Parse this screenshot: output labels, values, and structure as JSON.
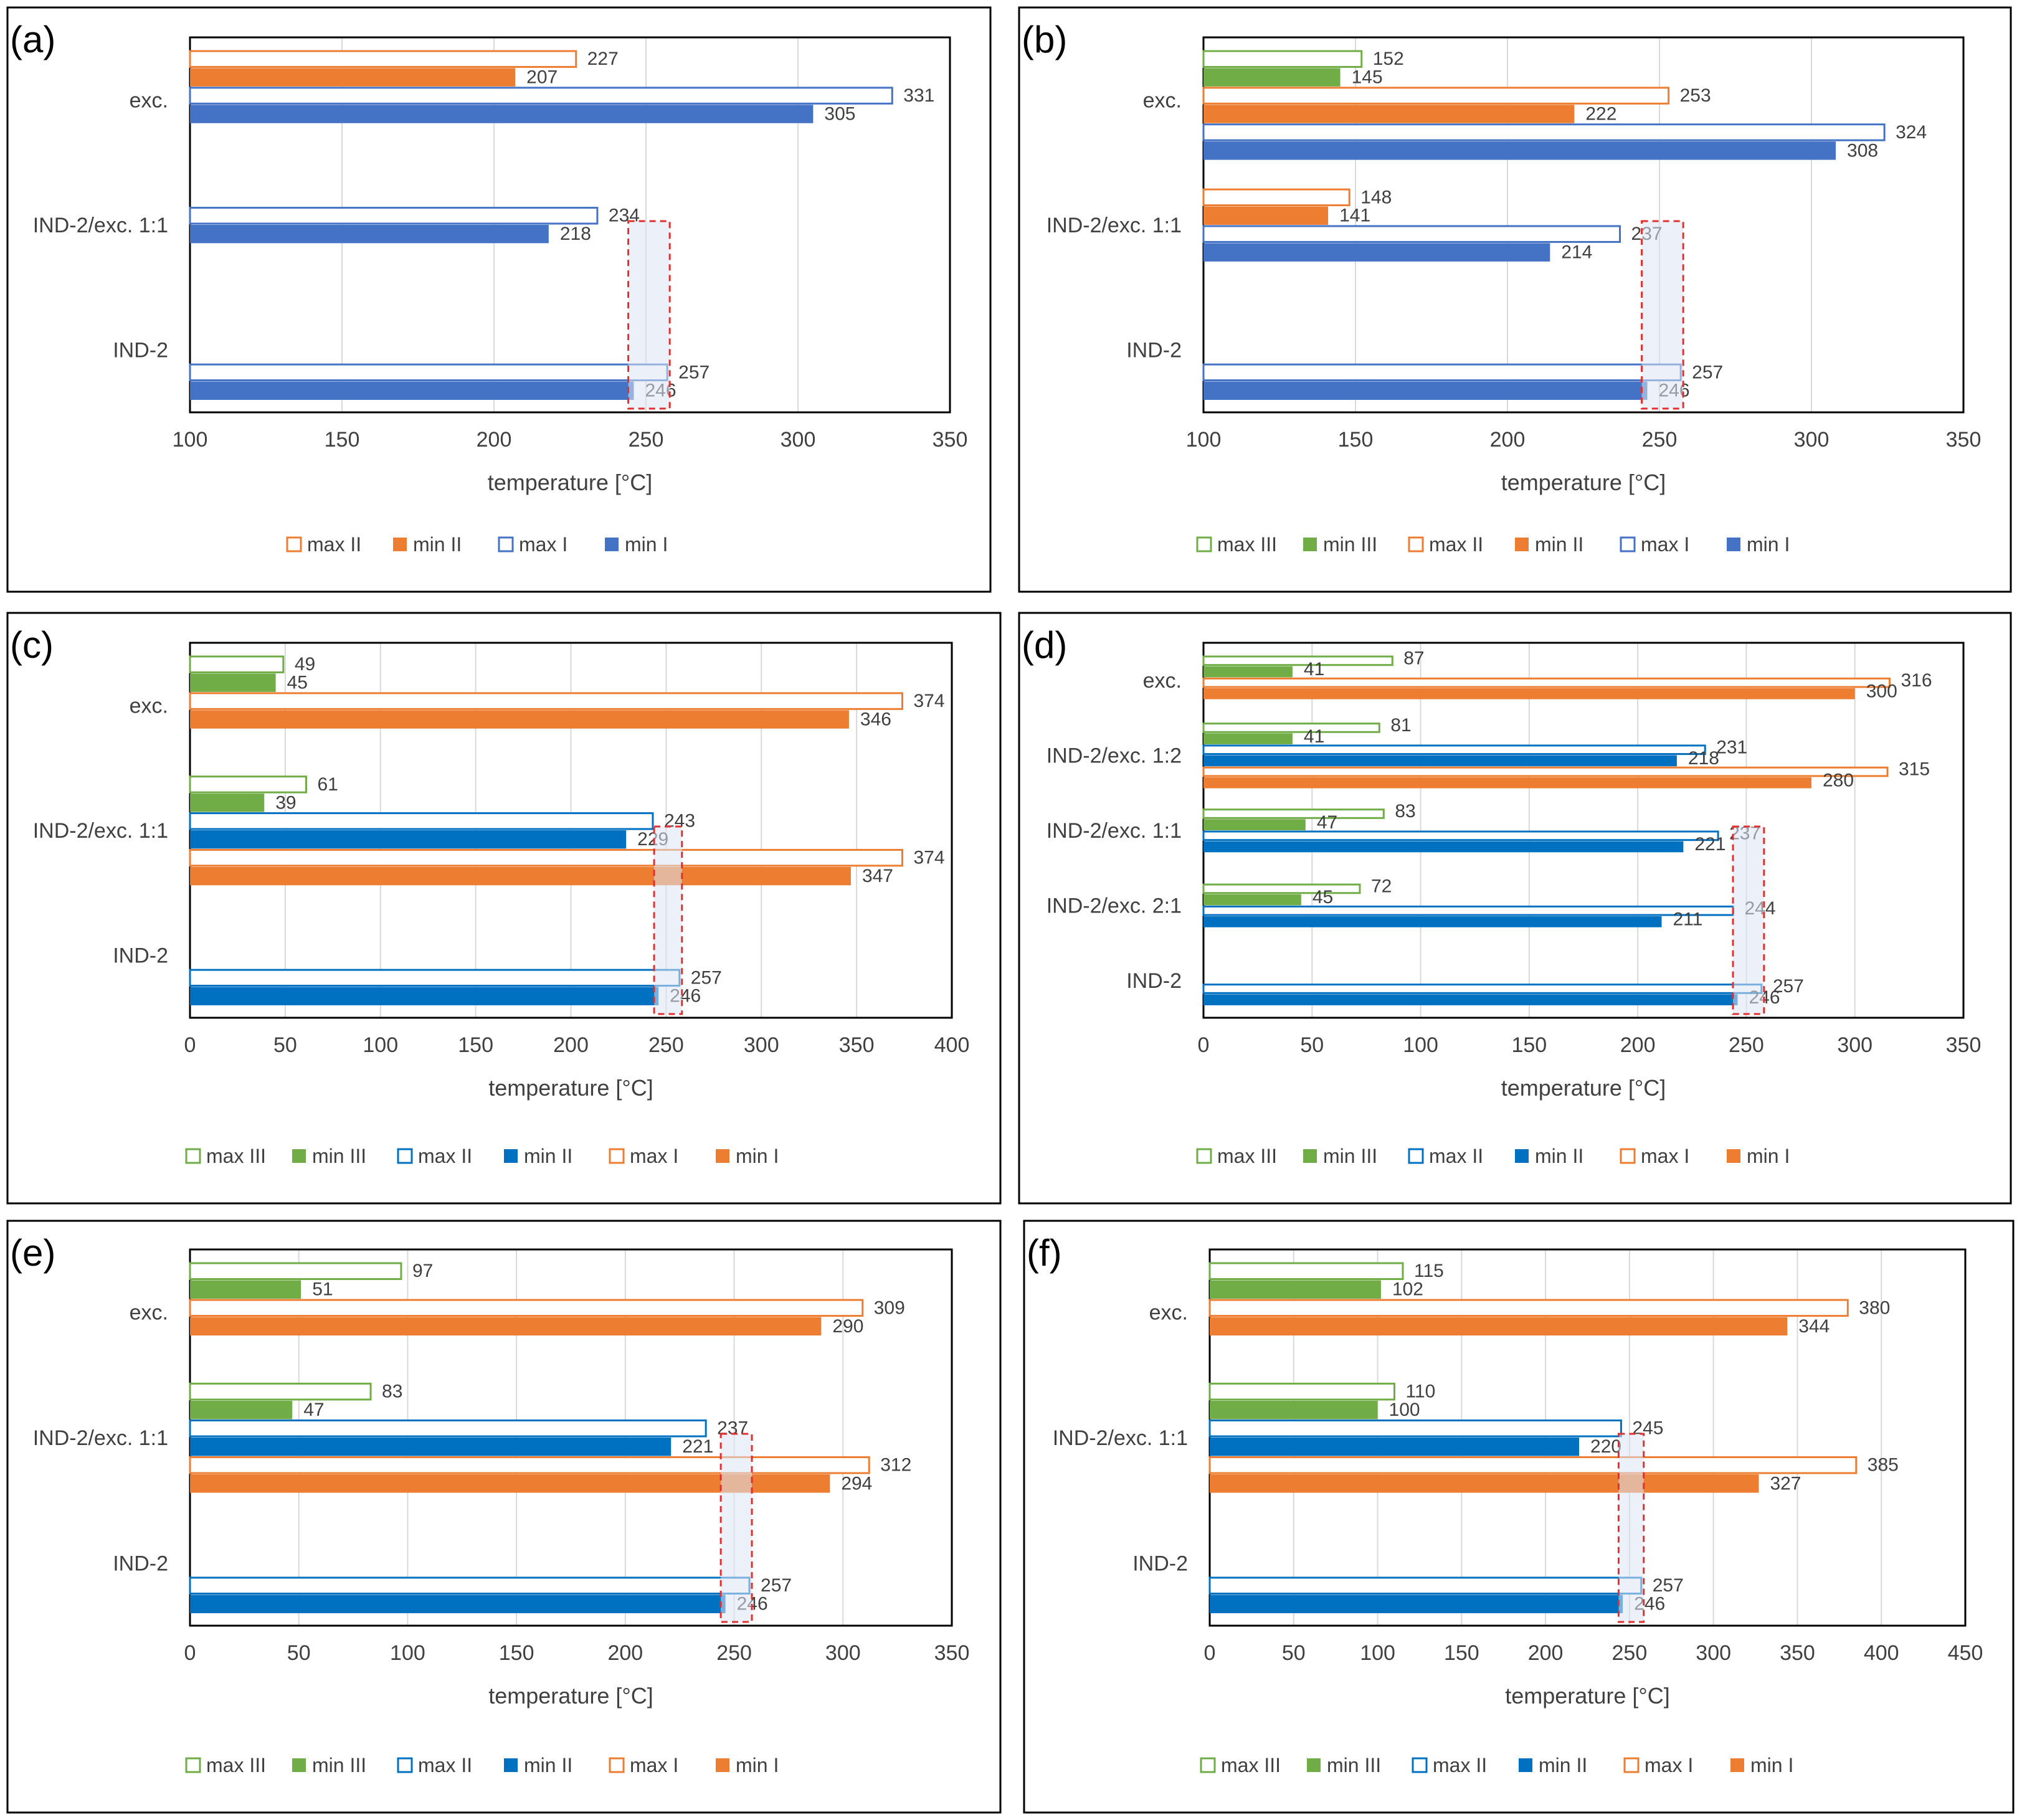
{
  "colors": {
    "frame": "#000000",
    "grid": "#d9d9d9",
    "blue": "#4472c4",
    "blue2": "#0070c0",
    "orange": "#ed7d31",
    "green": "#70ad47",
    "highlight_border": "#e03030",
    "highlight_fill": "#dde6f4",
    "text": "#404040"
  },
  "chart_data": [
    {
      "type": "bar",
      "panel_label": "(a)",
      "xlabel": "temperature [°C]",
      "xlim": [
        100,
        350
      ],
      "ticks": [
        100,
        150,
        200,
        250,
        300,
        350
      ],
      "grid": true,
      "legend_position": "bottom",
      "highlight": [
        245,
        257
      ],
      "categories": [
        {
          "name": "exc.",
          "bars": [
            {
              "series": "max II",
              "value": 227,
              "label": "227"
            },
            {
              "series": "min II",
              "value": 207,
              "label": "207"
            },
            {
              "series": "max I",
              "value": 331,
              "label": "331"
            },
            {
              "series": "min I",
              "value": 305,
              "label": "305"
            }
          ]
        },
        {
          "name": "IND-2/exc. 1:1",
          "bars": [
            {
              "series": "max I",
              "value": 234,
              "label": "234"
            },
            {
              "series": "min I",
              "value": 218,
              "label": "218"
            }
          ]
        },
        {
          "name": "IND-2",
          "bars": [
            {
              "series": "max I",
              "value": 257,
              "label": "257"
            },
            {
              "series": "min I",
              "value": 246,
              "label": "246"
            }
          ]
        }
      ],
      "legend": [
        {
          "label": "max II",
          "color": "#ed7d31",
          "style": "outline"
        },
        {
          "label": "min II",
          "color": "#ed7d31",
          "style": "solid"
        },
        {
          "label": "max I",
          "color": "#4472c4",
          "style": "outline"
        },
        {
          "label": "min I",
          "color": "#4472c4",
          "style": "solid"
        }
      ]
    },
    {
      "type": "bar",
      "panel_label": "(b)",
      "xlabel": "temperature [°C]",
      "xlim": [
        100,
        350
      ],
      "ticks": [
        100,
        150,
        200,
        250,
        300,
        350
      ],
      "grid": true,
      "legend_position": "bottom",
      "highlight": [
        245,
        257
      ],
      "categories": [
        {
          "name": "exc.",
          "bars": [
            {
              "series": "max III",
              "value": 152,
              "label": "152"
            },
            {
              "series": "min III",
              "value": 145,
              "label": "145"
            },
            {
              "series": "max II",
              "value": 253,
              "label": "253"
            },
            {
              "series": "min II",
              "value": 222,
              "label": "222"
            },
            {
              "series": "max I",
              "value": 324,
              "label": "324"
            },
            {
              "series": "min I",
              "value": 308,
              "label": "308"
            }
          ]
        },
        {
          "name": "IND-2/exc. 1:1",
          "bars": [
            {
              "series": "max II",
              "value": 148,
              "label": "148"
            },
            {
              "series": "min II",
              "value": 141,
              "label": "141"
            },
            {
              "series": "max I",
              "value": 237,
              "label": "237"
            },
            {
              "series": "min I",
              "value": 214,
              "label": "214"
            }
          ]
        },
        {
          "name": "IND-2",
          "bars": [
            {
              "series": "max I",
              "value": 257,
              "label": "257"
            },
            {
              "series": "min I",
              "value": 246,
              "label": "246"
            }
          ]
        }
      ],
      "legend": [
        {
          "label": "max III",
          "color": "#70ad47",
          "style": "outline"
        },
        {
          "label": "min III",
          "color": "#70ad47",
          "style": "solid"
        },
        {
          "label": "max II",
          "color": "#ed7d31",
          "style": "outline"
        },
        {
          "label": "min II",
          "color": "#ed7d31",
          "style": "solid"
        },
        {
          "label": "max I",
          "color": "#4472c4",
          "style": "outline"
        },
        {
          "label": "min I",
          "color": "#4472c4",
          "style": "solid"
        }
      ]
    },
    {
      "type": "bar",
      "panel_label": "(c)",
      "xlabel": "temperature [°C]",
      "xlim": [
        0,
        400
      ],
      "ticks": [
        0,
        50,
        100,
        150,
        200,
        250,
        300,
        350,
        400
      ],
      "grid": true,
      "legend_position": "bottom",
      "highlight": [
        245,
        257
      ],
      "categories": [
        {
          "name": "exc.",
          "bars": [
            {
              "series": "max III",
              "value": 49,
              "label": "49"
            },
            {
              "series": "min III",
              "value": 45,
              "label": "45"
            },
            {
              "series": "max I",
              "value": 374,
              "label": "374"
            },
            {
              "series": "min I",
              "value": 346,
              "label": "346"
            }
          ]
        },
        {
          "name": "IND-2/exc. 1:1",
          "bars": [
            {
              "series": "max III",
              "value": 61,
              "label": "61"
            },
            {
              "series": "min III",
              "value": 39,
              "label": "39"
            },
            {
              "series": "max II",
              "value": 243,
              "label": "243"
            },
            {
              "series": "min II",
              "value": 229,
              "label": "229"
            },
            {
              "series": "max I",
              "value": 374,
              "label": "374"
            },
            {
              "series": "min I",
              "value": 347,
              "label": "347"
            }
          ]
        },
        {
          "name": "IND-2",
          "bars": [
            {
              "series": "max II",
              "value": 257,
              "label": "257"
            },
            {
              "series": "min II",
              "value": 246,
              "label": "246"
            }
          ]
        }
      ],
      "legend": [
        {
          "label": "max III",
          "color": "#70ad47",
          "style": "outline"
        },
        {
          "label": "min III",
          "color": "#70ad47",
          "style": "solid"
        },
        {
          "label": "max II",
          "color": "#0070c0",
          "style": "outline"
        },
        {
          "label": "min II",
          "color": "#0070c0",
          "style": "solid"
        },
        {
          "label": "max I",
          "color": "#ed7d31",
          "style": "outline"
        },
        {
          "label": "min I",
          "color": "#ed7d31",
          "style": "solid"
        }
      ]
    },
    {
      "type": "bar",
      "panel_label": "(d)",
      "xlabel": "temperature [°C]",
      "xlim": [
        0,
        350
      ],
      "ticks": [
        0,
        50,
        100,
        150,
        200,
        250,
        300,
        350
      ],
      "grid": true,
      "legend_position": "bottom",
      "highlight": [
        245,
        257
      ],
      "categories": [
        {
          "name": "exc.",
          "bars": [
            {
              "series": "max III",
              "value": 87,
              "label": "87"
            },
            {
              "series": "min III",
              "value": 41,
              "label": "41"
            },
            {
              "series": "max I",
              "value": 316,
              "label": "316"
            },
            {
              "series": "min I",
              "value": 300,
              "label": "300"
            }
          ]
        },
        {
          "name": "IND-2/exc. 1:2",
          "bars": [
            {
              "series": "max III",
              "value": 81,
              "label": "81"
            },
            {
              "series": "min III",
              "value": 41,
              "label": "41"
            },
            {
              "series": "max II",
              "value": 231,
              "label": "231"
            },
            {
              "series": "min II",
              "value": 218,
              "label": "218"
            },
            {
              "series": "max I",
              "value": 315,
              "label": "315"
            },
            {
              "series": "min I",
              "value": 280,
              "label": "280"
            }
          ]
        },
        {
          "name": "IND-2/exc. 1:1",
          "bars": [
            {
              "series": "max III",
              "value": 83,
              "label": "83"
            },
            {
              "series": "min III",
              "value": 47,
              "label": "47"
            },
            {
              "series": "max II",
              "value": 237,
              "label": "237"
            },
            {
              "series": "min II",
              "value": 221,
              "label": "221"
            }
          ]
        },
        {
          "name": "IND-2/exc. 2:1",
          "bars": [
            {
              "series": "max III",
              "value": 72,
              "label": "72"
            },
            {
              "series": "min III",
              "value": 45,
              "label": "45"
            },
            {
              "series": "max II",
              "value": 244,
              "label": "244"
            },
            {
              "series": "min II",
              "value": 211,
              "label": "211"
            }
          ]
        },
        {
          "name": "IND-2",
          "bars": [
            {
              "series": "max II",
              "value": 257,
              "label": "257"
            },
            {
              "series": "min II",
              "value": 246,
              "label": "246"
            }
          ]
        }
      ],
      "legend": [
        {
          "label": "max III",
          "color": "#70ad47",
          "style": "outline"
        },
        {
          "label": "min III",
          "color": "#70ad47",
          "style": "solid"
        },
        {
          "label": "max II",
          "color": "#0070c0",
          "style": "outline"
        },
        {
          "label": "min II",
          "color": "#0070c0",
          "style": "solid"
        },
        {
          "label": "max I",
          "color": "#ed7d31",
          "style": "outline"
        },
        {
          "label": "min I",
          "color": "#ed7d31",
          "style": "solid"
        }
      ]
    },
    {
      "type": "bar",
      "panel_label": "(e)",
      "xlabel": "temperature [°C]",
      "xlim": [
        0,
        350
      ],
      "ticks": [
        0,
        50,
        100,
        150,
        200,
        250,
        300,
        350
      ],
      "grid": true,
      "legend_position": "bottom",
      "highlight": [
        245,
        257
      ],
      "categories": [
        {
          "name": "exc.",
          "bars": [
            {
              "series": "max III",
              "value": 97,
              "label": "97"
            },
            {
              "series": "min III",
              "value": 51,
              "label": "51"
            },
            {
              "series": "max I",
              "value": 309,
              "label": "309"
            },
            {
              "series": "min I",
              "value": 290,
              "label": "290"
            }
          ]
        },
        {
          "name": "IND-2/exc. 1:1",
          "bars": [
            {
              "series": "max III",
              "value": 83,
              "label": "83"
            },
            {
              "series": "min III",
              "value": 47,
              "label": "47"
            },
            {
              "series": "max II",
              "value": 237,
              "label": "237"
            },
            {
              "series": "min II",
              "value": 221,
              "label": "221"
            },
            {
              "series": "max I",
              "value": 312,
              "label": "312"
            },
            {
              "series": "min I",
              "value": 294,
              "label": "294"
            }
          ]
        },
        {
          "name": "IND-2",
          "bars": [
            {
              "series": "max II",
              "value": 257,
              "label": "257"
            },
            {
              "series": "min II",
              "value": 246,
              "label": "246"
            }
          ]
        }
      ],
      "legend": [
        {
          "label": "max III",
          "color": "#70ad47",
          "style": "outline"
        },
        {
          "label": "min III",
          "color": "#70ad47",
          "style": "solid"
        },
        {
          "label": "max II",
          "color": "#0070c0",
          "style": "outline"
        },
        {
          "label": "min II",
          "color": "#0070c0",
          "style": "solid"
        },
        {
          "label": "max I",
          "color": "#ed7d31",
          "style": "outline"
        },
        {
          "label": "min I",
          "color": "#ed7d31",
          "style": "solid"
        }
      ]
    },
    {
      "type": "bar",
      "panel_label": "(f)",
      "xlabel": "temperature [°C]",
      "xlim": [
        0,
        450
      ],
      "ticks": [
        0,
        50,
        100,
        150,
        200,
        250,
        300,
        350,
        400,
        450
      ],
      "grid": true,
      "legend_position": "bottom",
      "highlight": [
        245,
        257
      ],
      "categories": [
        {
          "name": "exc.",
          "bars": [
            {
              "series": "max III",
              "value": 115,
              "label": "115"
            },
            {
              "series": "min III",
              "value": 102,
              "label": "102"
            },
            {
              "series": "max I",
              "value": 380,
              "label": "380"
            },
            {
              "series": "min I",
              "value": 344,
              "label": "344"
            }
          ]
        },
        {
          "name": "IND-2/exc. 1:1",
          "bars": [
            {
              "series": "max III",
              "value": 110,
              "label": "110"
            },
            {
              "series": "min III",
              "value": 100,
              "label": "100"
            },
            {
              "series": "max II",
              "value": 245,
              "label": "245"
            },
            {
              "series": "min II",
              "value": 220,
              "label": "220"
            },
            {
              "series": "max I",
              "value": 385,
              "label": "385"
            },
            {
              "series": "min I",
              "value": 327,
              "label": "327"
            }
          ]
        },
        {
          "name": "IND-2",
          "bars": [
            {
              "series": "max II",
              "value": 257,
              "label": "257"
            },
            {
              "series": "min II",
              "value": 246,
              "label": "246"
            }
          ]
        }
      ],
      "legend": [
        {
          "label": "max III",
          "color": "#70ad47",
          "style": "outline"
        },
        {
          "label": "min III",
          "color": "#70ad47",
          "style": "solid"
        },
        {
          "label": "max II",
          "color": "#0070c0",
          "style": "outline"
        },
        {
          "label": "min II",
          "color": "#0070c0",
          "style": "solid"
        },
        {
          "label": "max I",
          "color": "#ed7d31",
          "style": "outline"
        },
        {
          "label": "min I",
          "color": "#ed7d31",
          "style": "solid"
        }
      ]
    }
  ]
}
